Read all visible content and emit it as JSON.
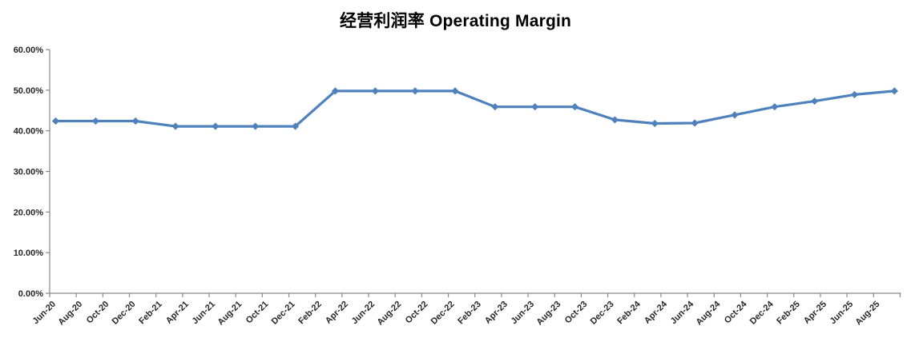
{
  "page": {
    "background": "#ffffff"
  },
  "chart_data": {
    "type": "line",
    "title": "经营利润率 Operating Margin",
    "xlabel": "",
    "ylabel": "",
    "ylim": [
      0,
      60
    ],
    "grid": false,
    "legend": "none",
    "axis_color": "#898989",
    "label_color": "#262626",
    "y_tick_labels": [
      "0.00%",
      "10.00%",
      "20.00%",
      "30.00%",
      "40.00%",
      "50.00%",
      "60.00%"
    ],
    "x_tick_labels": [
      "Jun-20",
      "Aug-20",
      "Oct-20",
      "Dec-20",
      "Feb-21",
      "Apr-21",
      "Jun-21",
      "Aug-21",
      "Oct-21",
      "Dec-21",
      "Feb-22",
      "Apr-22",
      "Jun-22",
      "Aug-22",
      "Oct-22",
      "Dec-22",
      "Feb-23",
      "Apr-23",
      "Jun-23",
      "Aug-23",
      "Oct-23",
      "Dec-23",
      "Feb-24",
      "Apr-24",
      "Jun-24",
      "Aug-24",
      "Oct-24",
      "Dec-24",
      "Feb-25",
      "Apr-25",
      "Jun-25",
      "Aug-25"
    ],
    "series": [
      {
        "name": "Operating Margin",
        "color": "#4F81BD",
        "marker": "diamond",
        "x": [
          "Jun-20",
          "Sep-20",
          "Dec-20",
          "Mar-21",
          "Jun-21",
          "Sep-21",
          "Dec-21",
          "Mar-22",
          "Jun-22",
          "Sep-22",
          "Dec-22",
          "Mar-23",
          "Jun-23",
          "Sep-23",
          "Dec-23",
          "Mar-24",
          "Jun-24",
          "Sep-24",
          "Dec-24",
          "Mar-25",
          "Jun-25",
          "Sep-25"
        ],
        "values": [
          42.4,
          42.4,
          42.4,
          41.1,
          41.1,
          41.1,
          41.1,
          49.8,
          49.8,
          49.8,
          49.8,
          45.9,
          45.9,
          45.9,
          42.7,
          41.8,
          41.9,
          43.9,
          45.9,
          47.3,
          48.9,
          49.8
        ]
      }
    ]
  }
}
